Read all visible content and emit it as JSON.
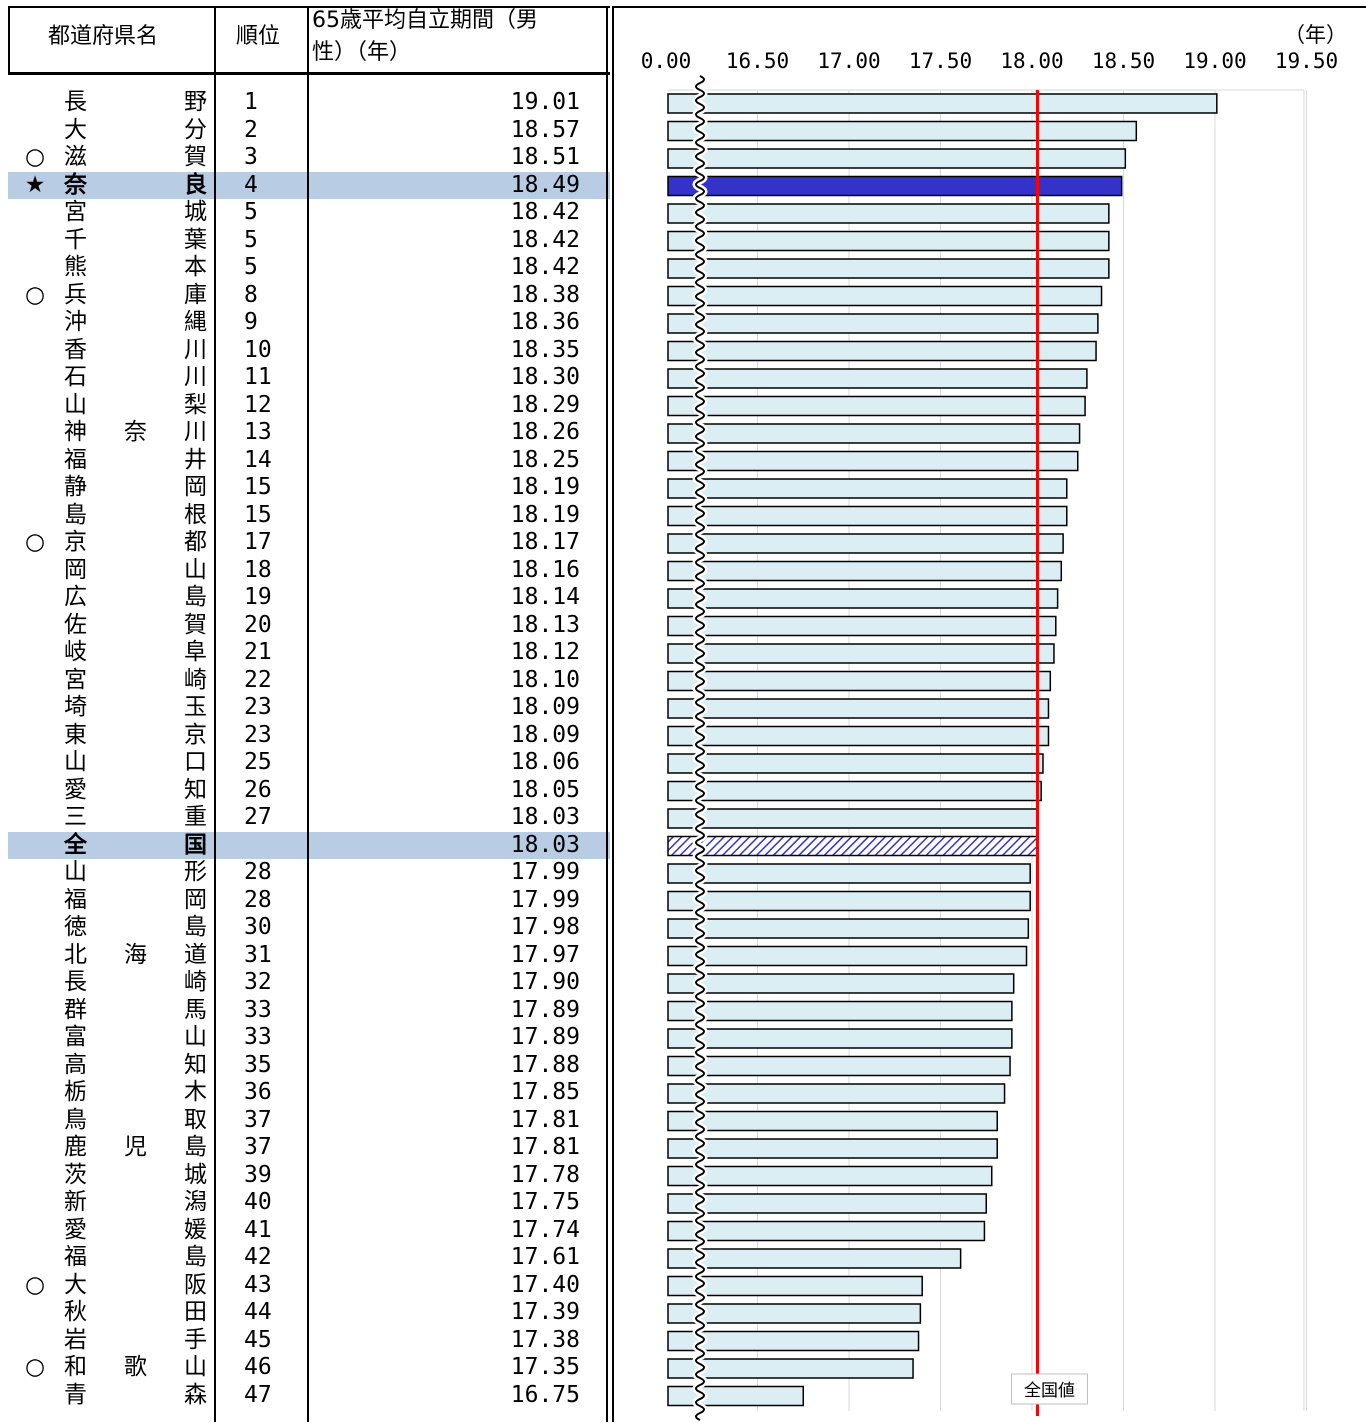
{
  "table": {
    "header": {
      "name": "都道府県名",
      "rank": "順位",
      "value_line1": "65歳平均自立期間（男",
      "value_line2": "性）（年）"
    },
    "rows": [
      {
        "mark": "",
        "name": "長野",
        "rank": "1",
        "value": "19.01",
        "highlight": false
      },
      {
        "mark": "",
        "name": "大分",
        "rank": "2",
        "value": "18.57",
        "highlight": false
      },
      {
        "mark": "○",
        "name": "滋賀",
        "rank": "3",
        "value": "18.51",
        "highlight": false
      },
      {
        "mark": "★",
        "name": "奈良",
        "rank": "4",
        "value": "18.49",
        "highlight": true
      },
      {
        "mark": "",
        "name": "宮城",
        "rank": "5",
        "value": "18.42",
        "highlight": false
      },
      {
        "mark": "",
        "name": "千葉",
        "rank": "5",
        "value": "18.42",
        "highlight": false
      },
      {
        "mark": "",
        "name": "熊本",
        "rank": "5",
        "value": "18.42",
        "highlight": false
      },
      {
        "mark": "○",
        "name": "兵庫",
        "rank": "8",
        "value": "18.38",
        "highlight": false
      },
      {
        "mark": "",
        "name": "沖縄",
        "rank": "9",
        "value": "18.36",
        "highlight": false
      },
      {
        "mark": "",
        "name": "香川",
        "rank": "10",
        "value": "18.35",
        "highlight": false
      },
      {
        "mark": "",
        "name": "石川",
        "rank": "11",
        "value": "18.30",
        "highlight": false
      },
      {
        "mark": "",
        "name": "山梨",
        "rank": "12",
        "value": "18.29",
        "highlight": false
      },
      {
        "mark": "",
        "name": "神奈川",
        "rank": "13",
        "value": "18.26",
        "highlight": false
      },
      {
        "mark": "",
        "name": "福井",
        "rank": "14",
        "value": "18.25",
        "highlight": false
      },
      {
        "mark": "",
        "name": "静岡",
        "rank": "15",
        "value": "18.19",
        "highlight": false
      },
      {
        "mark": "",
        "name": "島根",
        "rank": "15",
        "value": "18.19",
        "highlight": false
      },
      {
        "mark": "○",
        "name": "京都",
        "rank": "17",
        "value": "18.17",
        "highlight": false
      },
      {
        "mark": "",
        "name": "岡山",
        "rank": "18",
        "value": "18.16",
        "highlight": false
      },
      {
        "mark": "",
        "name": "広島",
        "rank": "19",
        "value": "18.14",
        "highlight": false
      },
      {
        "mark": "",
        "name": "佐賀",
        "rank": "20",
        "value": "18.13",
        "highlight": false
      },
      {
        "mark": "",
        "name": "岐阜",
        "rank": "21",
        "value": "18.12",
        "highlight": false
      },
      {
        "mark": "",
        "name": "宮崎",
        "rank": "22",
        "value": "18.10",
        "highlight": false
      },
      {
        "mark": "",
        "name": "埼玉",
        "rank": "23",
        "value": "18.09",
        "highlight": false
      },
      {
        "mark": "",
        "name": "東京",
        "rank": "23",
        "value": "18.09",
        "highlight": false
      },
      {
        "mark": "",
        "name": "山口",
        "rank": "25",
        "value": "18.06",
        "highlight": false
      },
      {
        "mark": "",
        "name": "愛知",
        "rank": "26",
        "value": "18.05",
        "highlight": false
      },
      {
        "mark": "",
        "name": "三重",
        "rank": "27",
        "value": "18.03",
        "highlight": false
      },
      {
        "mark": "",
        "name": "全国",
        "rank": "",
        "value": "18.03",
        "highlight": true
      },
      {
        "mark": "",
        "name": "山形",
        "rank": "28",
        "value": "17.99",
        "highlight": false
      },
      {
        "mark": "",
        "name": "福岡",
        "rank": "28",
        "value": "17.99",
        "highlight": false
      },
      {
        "mark": "",
        "name": "徳島",
        "rank": "30",
        "value": "17.98",
        "highlight": false
      },
      {
        "mark": "",
        "name": "北海道",
        "rank": "31",
        "value": "17.97",
        "highlight": false
      },
      {
        "mark": "",
        "name": "長崎",
        "rank": "32",
        "value": "17.90",
        "highlight": false
      },
      {
        "mark": "",
        "name": "群馬",
        "rank": "33",
        "value": "17.89",
        "highlight": false
      },
      {
        "mark": "",
        "name": "富山",
        "rank": "33",
        "value": "17.89",
        "highlight": false
      },
      {
        "mark": "",
        "name": "高知",
        "rank": "35",
        "value": "17.88",
        "highlight": false
      },
      {
        "mark": "",
        "name": "栃木",
        "rank": "36",
        "value": "17.85",
        "highlight": false
      },
      {
        "mark": "",
        "name": "鳥取",
        "rank": "37",
        "value": "17.81",
        "highlight": false
      },
      {
        "mark": "",
        "name": "鹿児島",
        "rank": "37",
        "value": "17.81",
        "highlight": false
      },
      {
        "mark": "",
        "name": "茨城",
        "rank": "39",
        "value": "17.78",
        "highlight": false
      },
      {
        "mark": "",
        "name": "新潟",
        "rank": "40",
        "value": "17.75",
        "highlight": false
      },
      {
        "mark": "",
        "name": "愛媛",
        "rank": "41",
        "value": "17.74",
        "highlight": false
      },
      {
        "mark": "",
        "name": "福島",
        "rank": "42",
        "value": "17.61",
        "highlight": false
      },
      {
        "mark": "○",
        "name": "大阪",
        "rank": "43",
        "value": "17.40",
        "highlight": false
      },
      {
        "mark": "",
        "name": "秋田",
        "rank": "44",
        "value": "17.39",
        "highlight": false
      },
      {
        "mark": "",
        "name": "岩手",
        "rank": "45",
        "value": "17.38",
        "highlight": false
      },
      {
        "mark": "○",
        "name": "和歌山",
        "rank": "46",
        "value": "17.35",
        "highlight": false
      },
      {
        "mark": "",
        "name": "青森",
        "rank": "47",
        "value": "16.75",
        "highlight": false
      }
    ]
  },
  "chart_data": {
    "type": "bar",
    "orientation": "horizontal",
    "title": "",
    "xlabel": "",
    "ylabel": "",
    "unit_label": "（年）",
    "x_ticks": [
      "0.00",
      "16.50",
      "17.00",
      "17.50",
      "18.00",
      "18.50",
      "19.00",
      "19.50"
    ],
    "axis_break": true,
    "xlim": [
      16.0,
      19.5
    ],
    "categories": [
      "長野",
      "大分",
      "滋賀",
      "奈良",
      "宮城",
      "千葉",
      "熊本",
      "兵庫",
      "沖縄",
      "香川",
      "石川",
      "山梨",
      "神奈川",
      "福井",
      "静岡",
      "島根",
      "京都",
      "岡山",
      "広島",
      "佐賀",
      "岐阜",
      "宮崎",
      "埼玉",
      "東京",
      "山口",
      "愛知",
      "三重",
      "全国",
      "山形",
      "福岡",
      "徳島",
      "北海道",
      "長崎",
      "群馬",
      "富山",
      "高知",
      "栃木",
      "鳥取",
      "鹿児島",
      "茨城",
      "新潟",
      "愛媛",
      "福島",
      "大阪",
      "秋田",
      "岩手",
      "和歌山",
      "青森"
    ],
    "values": [
      19.01,
      18.57,
      18.51,
      18.49,
      18.42,
      18.42,
      18.42,
      18.38,
      18.36,
      18.35,
      18.3,
      18.29,
      18.26,
      18.25,
      18.19,
      18.19,
      18.17,
      18.16,
      18.14,
      18.13,
      18.12,
      18.1,
      18.09,
      18.09,
      18.06,
      18.05,
      18.03,
      18.03,
      17.99,
      17.99,
      17.98,
      17.97,
      17.9,
      17.89,
      17.89,
      17.88,
      17.85,
      17.81,
      17.81,
      17.78,
      17.75,
      17.74,
      17.61,
      17.4,
      17.39,
      17.38,
      17.35,
      16.75
    ],
    "reference_line": {
      "label": "全国値",
      "value": 18.03
    },
    "colors": {
      "bar_fill": "#daeef3",
      "highlight_bar": "#3333cc",
      "national_bar_hatch": "#3333cc",
      "reference_line": "#ff0000",
      "row_highlight": "#b8cce4"
    },
    "highlighted_category": "奈良",
    "national_category": "全国",
    "grid": true
  }
}
